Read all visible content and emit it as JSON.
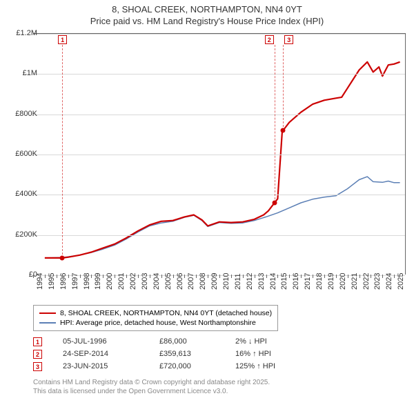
{
  "title_line1": "8, SHOAL CREEK, NORTHAMPTON, NN4 0YT",
  "title_line2": "Price paid vs. HM Land Registry's House Price Index (HPI)",
  "chart": {
    "type": "line",
    "background_color": "#ffffff",
    "grid_color": "#d8d8d8",
    "axis_color": "#666666",
    "x_start": 1994,
    "x_end": 2026,
    "x_ticks": [
      1994,
      1995,
      1996,
      1997,
      1998,
      1999,
      2000,
      2001,
      2002,
      2003,
      2004,
      2005,
      2006,
      2007,
      2008,
      2009,
      2010,
      2011,
      2012,
      2013,
      2014,
      2015,
      2016,
      2017,
      2018,
      2019,
      2020,
      2021,
      2022,
      2023,
      2024,
      2025
    ],
    "y_min": 0,
    "y_max": 1200000,
    "y_ticks": [
      {
        "v": 0,
        "label": "£0"
      },
      {
        "v": 200000,
        "label": "£200K"
      },
      {
        "v": 400000,
        "label": "£400K"
      },
      {
        "v": 600000,
        "label": "£600K"
      },
      {
        "v": 800000,
        "label": "£800K"
      },
      {
        "v": 1000000,
        "label": "£1M"
      },
      {
        "v": 1200000,
        "label": "£1.2M"
      }
    ],
    "series": [
      {
        "name": "8, SHOAL CREEK, NORTHAMPTON, NN4 0YT (detached house)",
        "color": "#cc0000",
        "width": 2.2,
        "data": [
          [
            1995.0,
            86000
          ],
          [
            1996.5,
            86000
          ],
          [
            1997.0,
            90000
          ],
          [
            1998.0,
            100000
          ],
          [
            1999.0,
            115000
          ],
          [
            2000.0,
            135000
          ],
          [
            2001.0,
            155000
          ],
          [
            2002.0,
            185000
          ],
          [
            2003.0,
            220000
          ],
          [
            2004.0,
            250000
          ],
          [
            2005.0,
            268000
          ],
          [
            2006.0,
            272000
          ],
          [
            2007.0,
            290000
          ],
          [
            2007.8,
            300000
          ],
          [
            2008.5,
            275000
          ],
          [
            2009.0,
            245000
          ],
          [
            2010.0,
            265000
          ],
          [
            2011.0,
            262000
          ],
          [
            2012.0,
            265000
          ],
          [
            2013.0,
            278000
          ],
          [
            2013.8,
            300000
          ],
          [
            2014.2,
            320000
          ],
          [
            2014.73,
            359613
          ],
          [
            2015.0,
            380000
          ],
          [
            2015.4,
            720000
          ],
          [
            2015.47,
            720000
          ],
          [
            2016.0,
            760000
          ],
          [
            2017.0,
            810000
          ],
          [
            2018.0,
            850000
          ],
          [
            2019.0,
            870000
          ],
          [
            2020.0,
            880000
          ],
          [
            2020.5,
            885000
          ],
          [
            2021.0,
            930000
          ],
          [
            2022.0,
            1020000
          ],
          [
            2022.7,
            1060000
          ],
          [
            2023.2,
            1010000
          ],
          [
            2023.7,
            1035000
          ],
          [
            2024.0,
            990000
          ],
          [
            2024.5,
            1045000
          ],
          [
            2025.0,
            1050000
          ],
          [
            2025.5,
            1060000
          ]
        ]
      },
      {
        "name": "HPI: Average price, detached house, West Northamptonshire",
        "color": "#5b7fb5",
        "width": 1.5,
        "data": [
          [
            1995.0,
            86000
          ],
          [
            1996.5,
            88000
          ],
          [
            1997.0,
            92000
          ],
          [
            1998.0,
            100000
          ],
          [
            1999.0,
            113000
          ],
          [
            2000.0,
            130000
          ],
          [
            2001.0,
            150000
          ],
          [
            2002.0,
            180000
          ],
          [
            2003.0,
            215000
          ],
          [
            2004.0,
            245000
          ],
          [
            2005.0,
            260000
          ],
          [
            2006.0,
            268000
          ],
          [
            2007.0,
            288000
          ],
          [
            2007.8,
            298000
          ],
          [
            2008.5,
            272000
          ],
          [
            2009.0,
            242000
          ],
          [
            2010.0,
            262000
          ],
          [
            2011.0,
            258000
          ],
          [
            2012.0,
            260000
          ],
          [
            2013.0,
            272000
          ],
          [
            2014.0,
            290000
          ],
          [
            2015.0,
            310000
          ],
          [
            2016.0,
            335000
          ],
          [
            2017.0,
            360000
          ],
          [
            2018.0,
            378000
          ],
          [
            2019.0,
            388000
          ],
          [
            2020.0,
            395000
          ],
          [
            2021.0,
            430000
          ],
          [
            2022.0,
            475000
          ],
          [
            2022.7,
            490000
          ],
          [
            2023.2,
            465000
          ],
          [
            2024.0,
            462000
          ],
          [
            2024.5,
            468000
          ],
          [
            2025.0,
            460000
          ],
          [
            2025.5,
            460000
          ]
        ]
      }
    ],
    "markers": [
      {
        "n": "1",
        "x": 1996.5,
        "y": 86000
      },
      {
        "n": "2",
        "x": 2014.73,
        "y": 359613
      },
      {
        "n": "3",
        "x": 2015.47,
        "y": 720000
      }
    ]
  },
  "legend": [
    {
      "color": "#cc0000",
      "width": 2.2,
      "label": "8, SHOAL CREEK, NORTHAMPTON, NN4 0YT (detached house)"
    },
    {
      "color": "#5b7fb5",
      "width": 1.5,
      "label": "HPI: Average price, detached house, West Northamptonshire"
    }
  ],
  "transactions": [
    {
      "n": "1",
      "date": "05-JUL-1996",
      "price": "£86,000",
      "pct": "2% ↓ HPI"
    },
    {
      "n": "2",
      "date": "24-SEP-2014",
      "price": "£359,613",
      "pct": "16% ↑ HPI"
    },
    {
      "n": "3",
      "date": "23-JUN-2015",
      "price": "£720,000",
      "pct": "125% ↑ HPI"
    }
  ],
  "footer_line1": "Contains HM Land Registry data © Crown copyright and database right 2025.",
  "footer_line2": "This data is licensed under the Open Government Licence v3.0."
}
